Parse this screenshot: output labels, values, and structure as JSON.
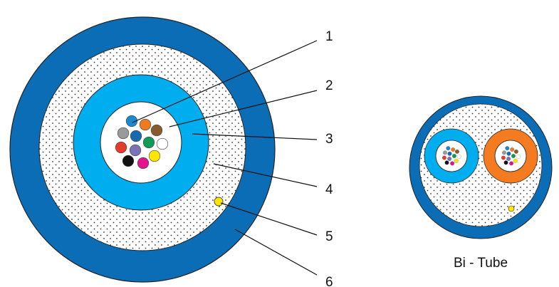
{
  "labels": [
    "1",
    "2",
    "3",
    "4",
    "5",
    "6"
  ],
  "caption": "Bi - Tube"
}
